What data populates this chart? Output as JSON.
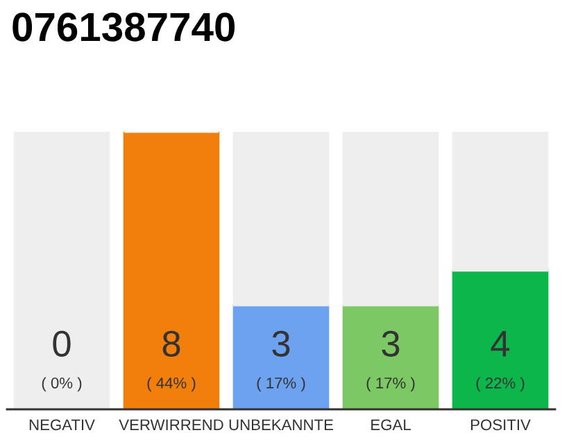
{
  "chart_data": {
    "type": "bar",
    "title": "0761387740",
    "categories": [
      "NEGATIV",
      "VERWIRREND",
      "UNBEKANNTE",
      "EGAL",
      "POSITIV"
    ],
    "stacked": true,
    "series": [
      {
        "values": [
          0,
          8,
          3,
          3,
          4
        ],
        "colors": [
          "#333333",
          "#f27f0c",
          "#6ca2ef",
          "#7cc864",
          "#0db64a"
        ],
        "value_labels": [
          "0\n( 0% )",
          "8\n( 44% )",
          "3\n( 17% )",
          "3\n( 17% )",
          "4\n( 22% )"
        ]
      },
      {
        "values": [
          8,
          0,
          5,
          5,
          4
        ],
        "color": "#eeeeee"
      }
    ],
    "legend": false
  }
}
